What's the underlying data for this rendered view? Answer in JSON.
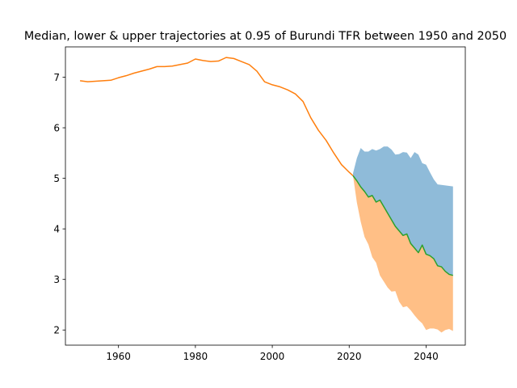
{
  "chart_data": {
    "type": "area",
    "title": "Median, lower & upper trajectories at 0.95 of Burundi TFR between 1950 and 2050",
    "xlabel": "",
    "ylabel": "",
    "xlim": [
      1946.2,
      2050.2
    ],
    "ylim": [
      1.7,
      7.6
    ],
    "grid": false,
    "legend": "none",
    "x_ticks": [
      1960,
      1980,
      2000,
      2020,
      2040
    ],
    "y_ticks": [
      2,
      3,
      4,
      5,
      6,
      7
    ],
    "colors": {
      "history": "#ff7f0e",
      "median": "#2ca02c",
      "upper_band": "#1f77b4",
      "lower_band": "#ff7f0e",
      "band_alpha": 0.5
    },
    "historical": {
      "x": [
        1950,
        1952,
        1954,
        1956,
        1958,
        1960,
        1962,
        1964,
        1966,
        1968,
        1970,
        1972,
        1974,
        1976,
        1978,
        1980,
        1982,
        1984,
        1986,
        1988,
        1990,
        1992,
        1994,
        1996,
        1998,
        2000,
        2002,
        2004,
        2006,
        2008,
        2010,
        2012,
        2014,
        2016,
        2018,
        2020,
        2021
      ],
      "y": [
        6.93,
        6.91,
        6.92,
        6.93,
        6.94,
        6.99,
        7.03,
        7.08,
        7.12,
        7.16,
        7.21,
        7.21,
        7.22,
        7.25,
        7.28,
        7.36,
        7.33,
        7.31,
        7.32,
        7.39,
        7.37,
        7.31,
        7.25,
        7.12,
        6.91,
        6.85,
        6.81,
        6.75,
        6.67,
        6.52,
        6.2,
        5.95,
        5.75,
        5.5,
        5.27,
        5.12,
        5.05
      ]
    },
    "median": {
      "x": [
        2021,
        2022,
        2023,
        2024,
        2025,
        2026,
        2027,
        2028,
        2029,
        2030,
        2031,
        2032,
        2033,
        2034,
        2035,
        2036,
        2037,
        2038,
        2039,
        2040,
        2041,
        2042,
        2043,
        2044,
        2045,
        2046,
        2047
      ],
      "y": [
        5.05,
        4.95,
        4.83,
        4.74,
        4.63,
        4.66,
        4.53,
        4.57,
        4.44,
        4.31,
        4.18,
        4.05,
        3.96,
        3.87,
        3.9,
        3.71,
        3.62,
        3.53,
        3.68,
        3.5,
        3.47,
        3.41,
        3.27,
        3.25,
        3.16,
        3.1,
        3.08
      ]
    },
    "upper": {
      "x": [
        2021,
        2022,
        2023,
        2024,
        2025,
        2026,
        2027,
        2028,
        2029,
        2030,
        2031,
        2032,
        2033,
        2034,
        2035,
        2036,
        2037,
        2038,
        2039,
        2040,
        2041,
        2042,
        2043,
        2044,
        2045,
        2046,
        2047
      ],
      "y": [
        5.1,
        5.4,
        5.6,
        5.53,
        5.53,
        5.58,
        5.55,
        5.58,
        5.63,
        5.63,
        5.57,
        5.47,
        5.48,
        5.52,
        5.51,
        5.4,
        5.52,
        5.47,
        5.3,
        5.27,
        5.12,
        4.98,
        4.88,
        4.87,
        4.86,
        4.85,
        4.84
      ]
    },
    "lower": {
      "x": [
        2021,
        2022,
        2023,
        2024,
        2025,
        2026,
        2027,
        2028,
        2029,
        2030,
        2031,
        2032,
        2033,
        2034,
        2035,
        2036,
        2037,
        2038,
        2039,
        2040,
        2041,
        2042,
        2043,
        2044,
        2045,
        2046,
        2047
      ],
      "y": [
        5.05,
        4.52,
        4.14,
        3.84,
        3.69,
        3.44,
        3.33,
        3.08,
        2.96,
        2.84,
        2.76,
        2.77,
        2.56,
        2.45,
        2.47,
        2.39,
        2.29,
        2.2,
        2.13,
        2.0,
        2.03,
        2.03,
        2.01,
        1.95,
        2.0,
        2.02,
        1.98
      ]
    }
  }
}
